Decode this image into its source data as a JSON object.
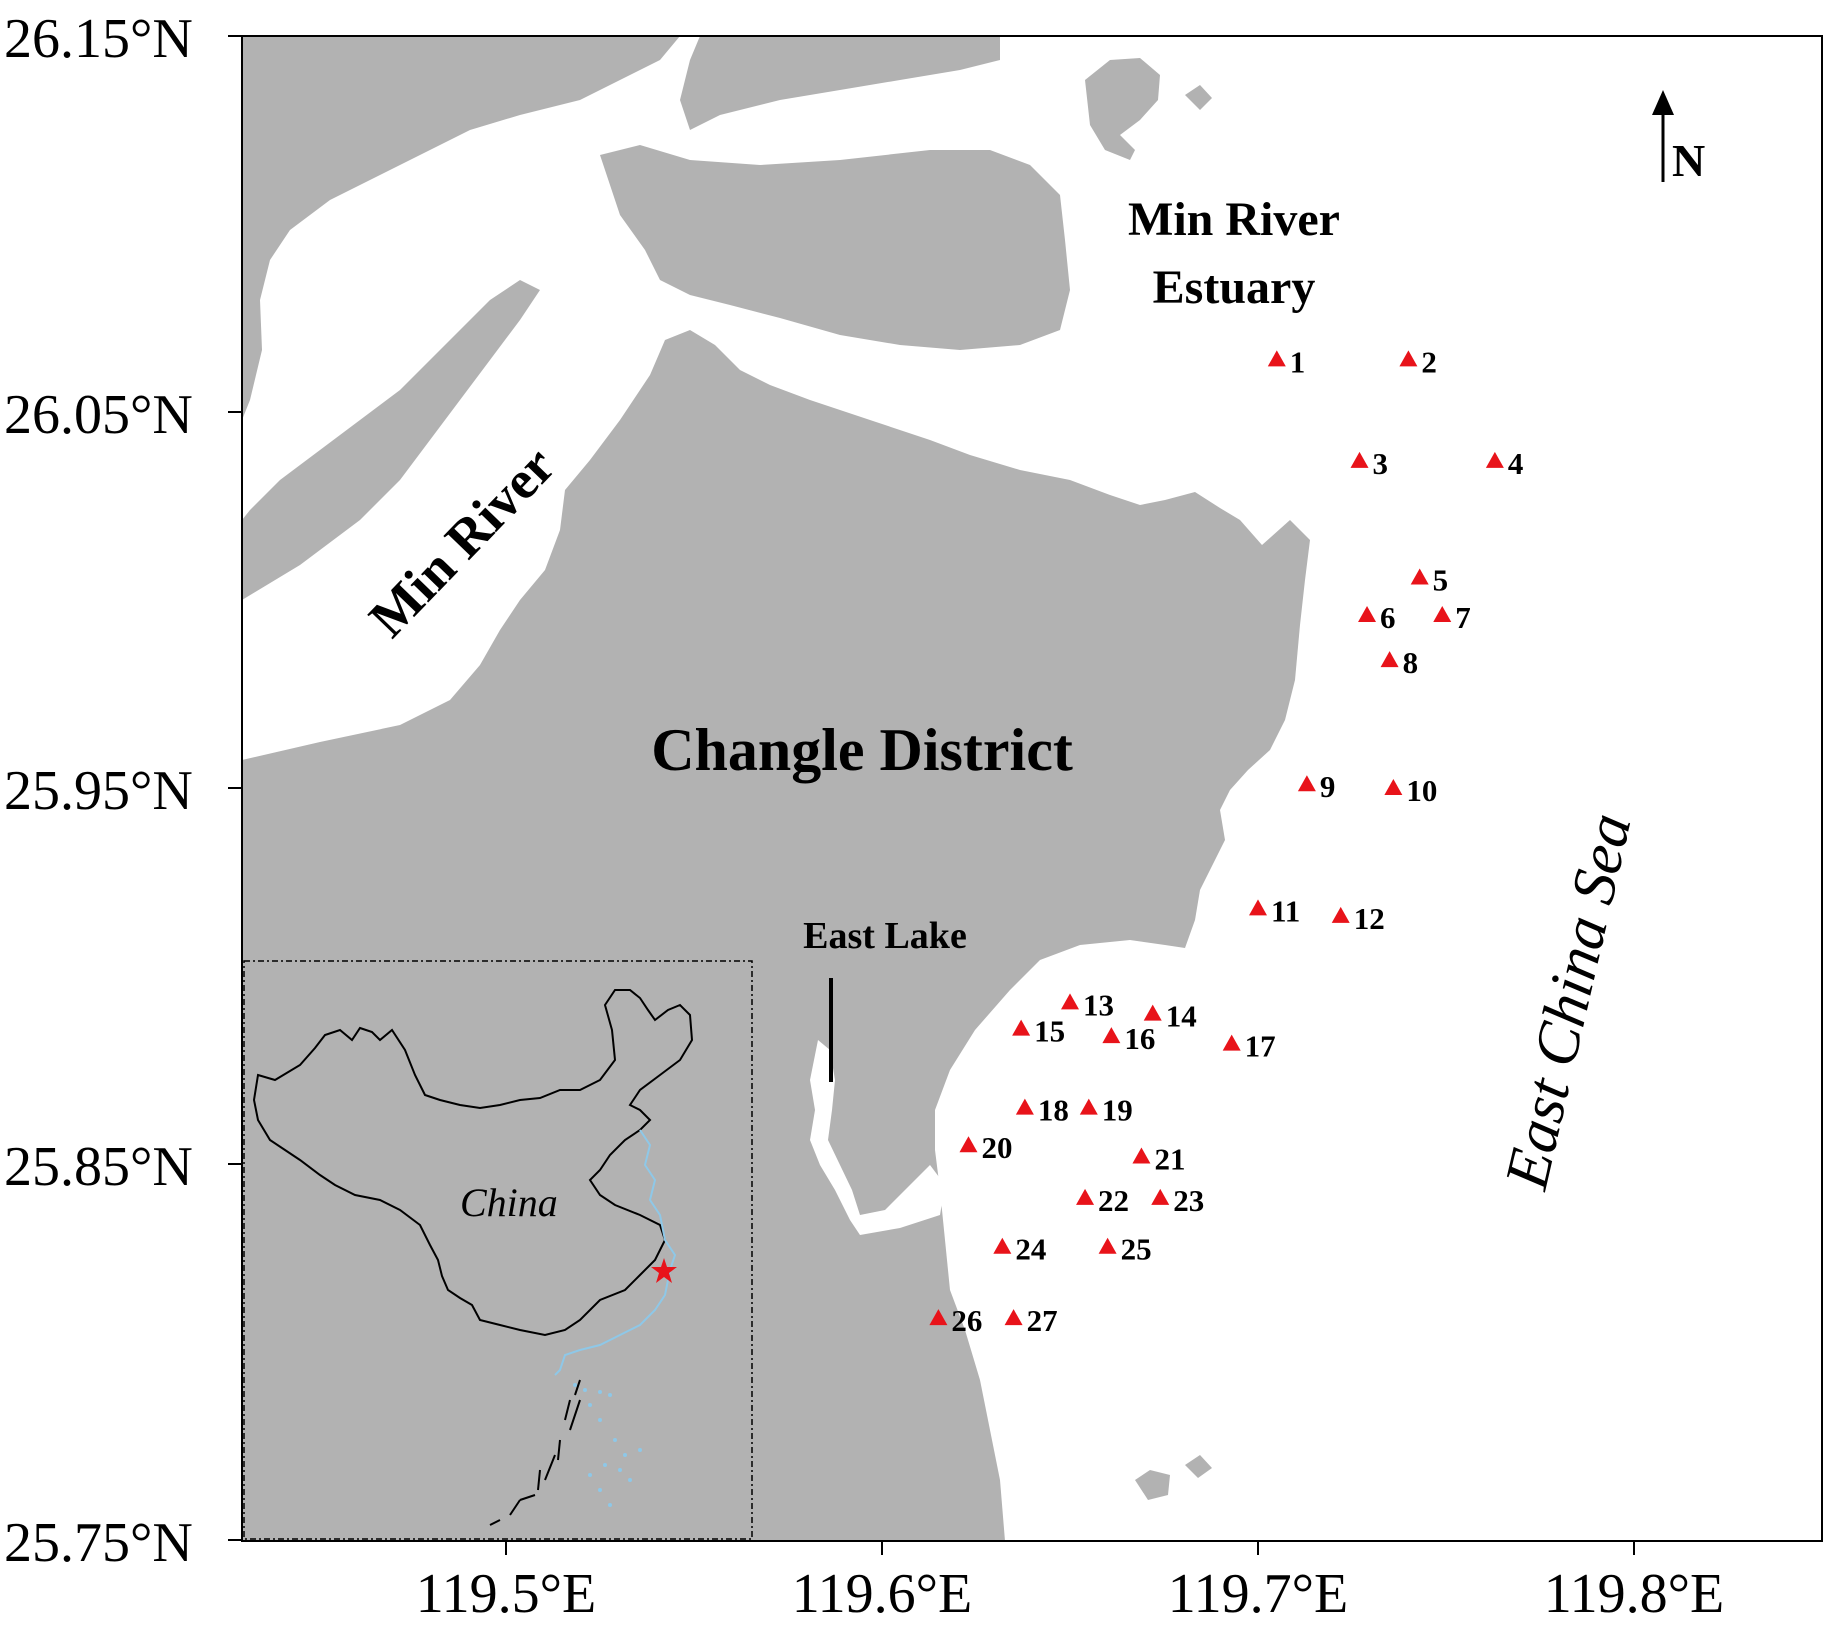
{
  "map": {
    "lat_ticks": [
      "26.15°N",
      "26.05°N",
      "25.95°N",
      "25.85°N",
      "25.75°N"
    ],
    "lon_ticks": [
      "119.5°E",
      "119.6°E",
      "119.7°E",
      "119.8°E"
    ],
    "labels": {
      "min_river": "Min River",
      "estuary_line1": "Min River",
      "estuary_line2": "Estuary",
      "district": "Changle District",
      "east_lake": "East Lake",
      "sea": "East China Sea",
      "north": "N",
      "inset_country": "China"
    },
    "colors": {
      "land": "#b2b2b2",
      "water": "#ffffff",
      "station": "#e8131a",
      "inset_coast": "#8ec8e8",
      "inset_star": "#e8131a"
    },
    "stations": [
      {
        "id": "1",
        "lon": 119.705,
        "lat": 26.064
      },
      {
        "id": "2",
        "lon": 119.74,
        "lat": 26.064
      },
      {
        "id": "3",
        "lon": 119.727,
        "lat": 26.037
      },
      {
        "id": "4",
        "lon": 119.763,
        "lat": 26.037
      },
      {
        "id": "5",
        "lon": 119.743,
        "lat": 26.006
      },
      {
        "id": "6",
        "lon": 119.729,
        "lat": 25.996
      },
      {
        "id": "7",
        "lon": 119.749,
        "lat": 25.996
      },
      {
        "id": "8",
        "lon": 119.735,
        "lat": 25.984
      },
      {
        "id": "9",
        "lon": 119.713,
        "lat": 25.951
      },
      {
        "id": "10",
        "lon": 119.736,
        "lat": 25.95
      },
      {
        "id": "11",
        "lon": 119.7,
        "lat": 25.918
      },
      {
        "id": "12",
        "lon": 119.722,
        "lat": 25.916
      },
      {
        "id": "13",
        "lon": 119.65,
        "lat": 25.893
      },
      {
        "id": "14",
        "lon": 119.672,
        "lat": 25.89
      },
      {
        "id": "15",
        "lon": 119.637,
        "lat": 25.886
      },
      {
        "id": "16",
        "lon": 119.661,
        "lat": 25.884
      },
      {
        "id": "17",
        "lon": 119.693,
        "lat": 25.882
      },
      {
        "id": "18",
        "lon": 119.638,
        "lat": 25.865
      },
      {
        "id": "19",
        "lon": 119.655,
        "lat": 25.865
      },
      {
        "id": "20",
        "lon": 119.623,
        "lat": 25.855
      },
      {
        "id": "21",
        "lon": 119.669,
        "lat": 25.852
      },
      {
        "id": "22",
        "lon": 119.654,
        "lat": 25.841
      },
      {
        "id": "23",
        "lon": 119.674,
        "lat": 25.841
      },
      {
        "id": "24",
        "lon": 119.632,
        "lat": 25.828
      },
      {
        "id": "25",
        "lon": 119.66,
        "lat": 25.828
      },
      {
        "id": "26",
        "lon": 119.615,
        "lat": 25.809
      },
      {
        "id": "27",
        "lon": 119.635,
        "lat": 25.809
      }
    ]
  }
}
